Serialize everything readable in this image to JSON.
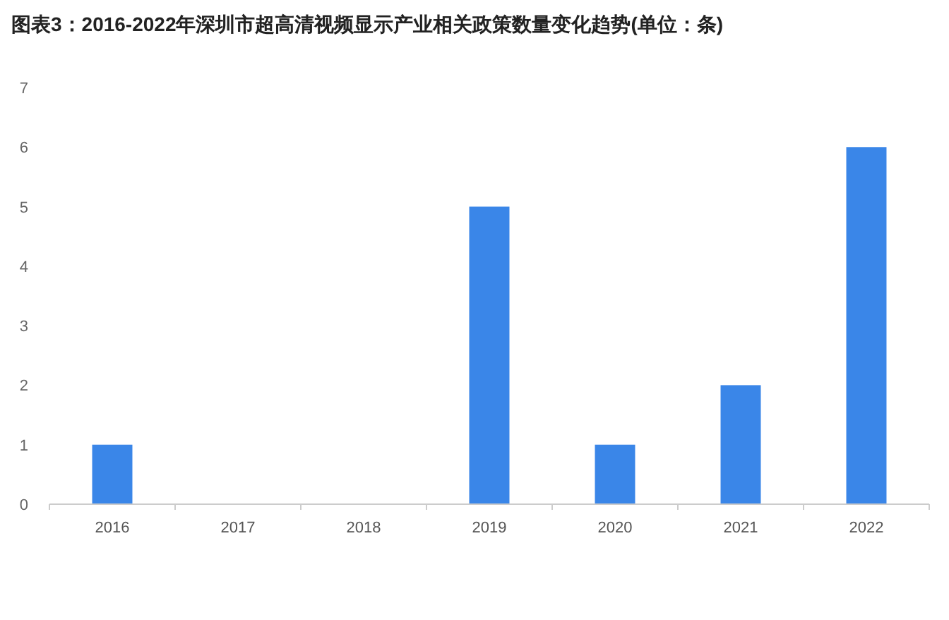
{
  "chart_data": {
    "type": "bar",
    "title": "图表3：2016-2022年深圳市超高清视频显示产业相关政策数量变化趋势(单位：条)",
    "categories": [
      "2016",
      "2017",
      "2018",
      "2019",
      "2020",
      "2021",
      "2022"
    ],
    "values": [
      1,
      0,
      0,
      5,
      1,
      2,
      6
    ],
    "color": "#3a86e8",
    "ylim": [
      0,
      7
    ],
    "yticks": [
      0,
      1,
      2,
      3,
      4,
      5,
      6,
      7
    ]
  }
}
